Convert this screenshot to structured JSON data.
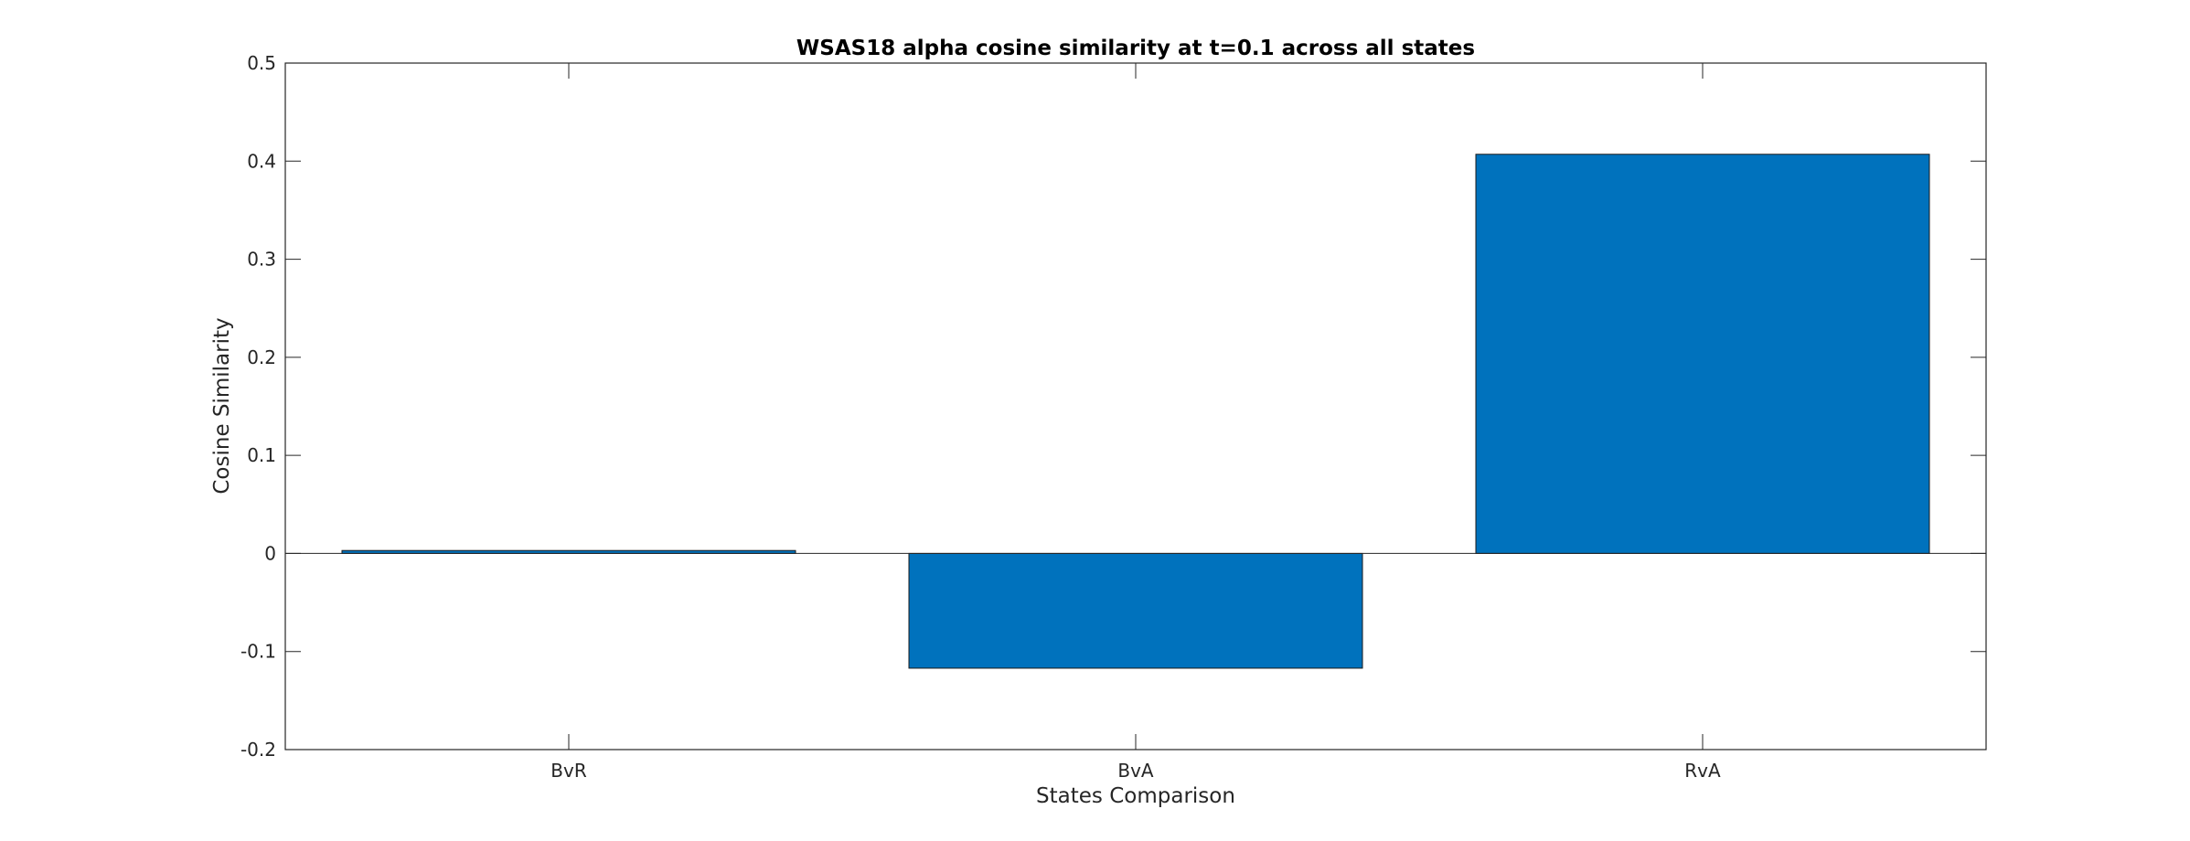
{
  "chart_data": {
    "type": "bar",
    "title": "WSAS18 alpha cosine similarity at t=0.1 across all states",
    "xlabel": "States Comparison",
    "ylabel": "Cosine Similarity",
    "categories": [
      "BvR",
      "BvA",
      "RvA"
    ],
    "values": [
      0.003,
      -0.117,
      0.407
    ],
    "ylim": [
      -0.2,
      0.5
    ],
    "yticks": [
      -0.2,
      -0.1,
      0,
      0.1,
      0.2,
      0.3,
      0.4,
      0.5
    ],
    "ytick_labels": [
      "-0.2",
      "-0.1",
      "0",
      "0.1",
      "0.2",
      "0.3",
      "0.4",
      "0.5"
    ],
    "grid": false,
    "bar_color": "#0072bd",
    "legend": null
  }
}
